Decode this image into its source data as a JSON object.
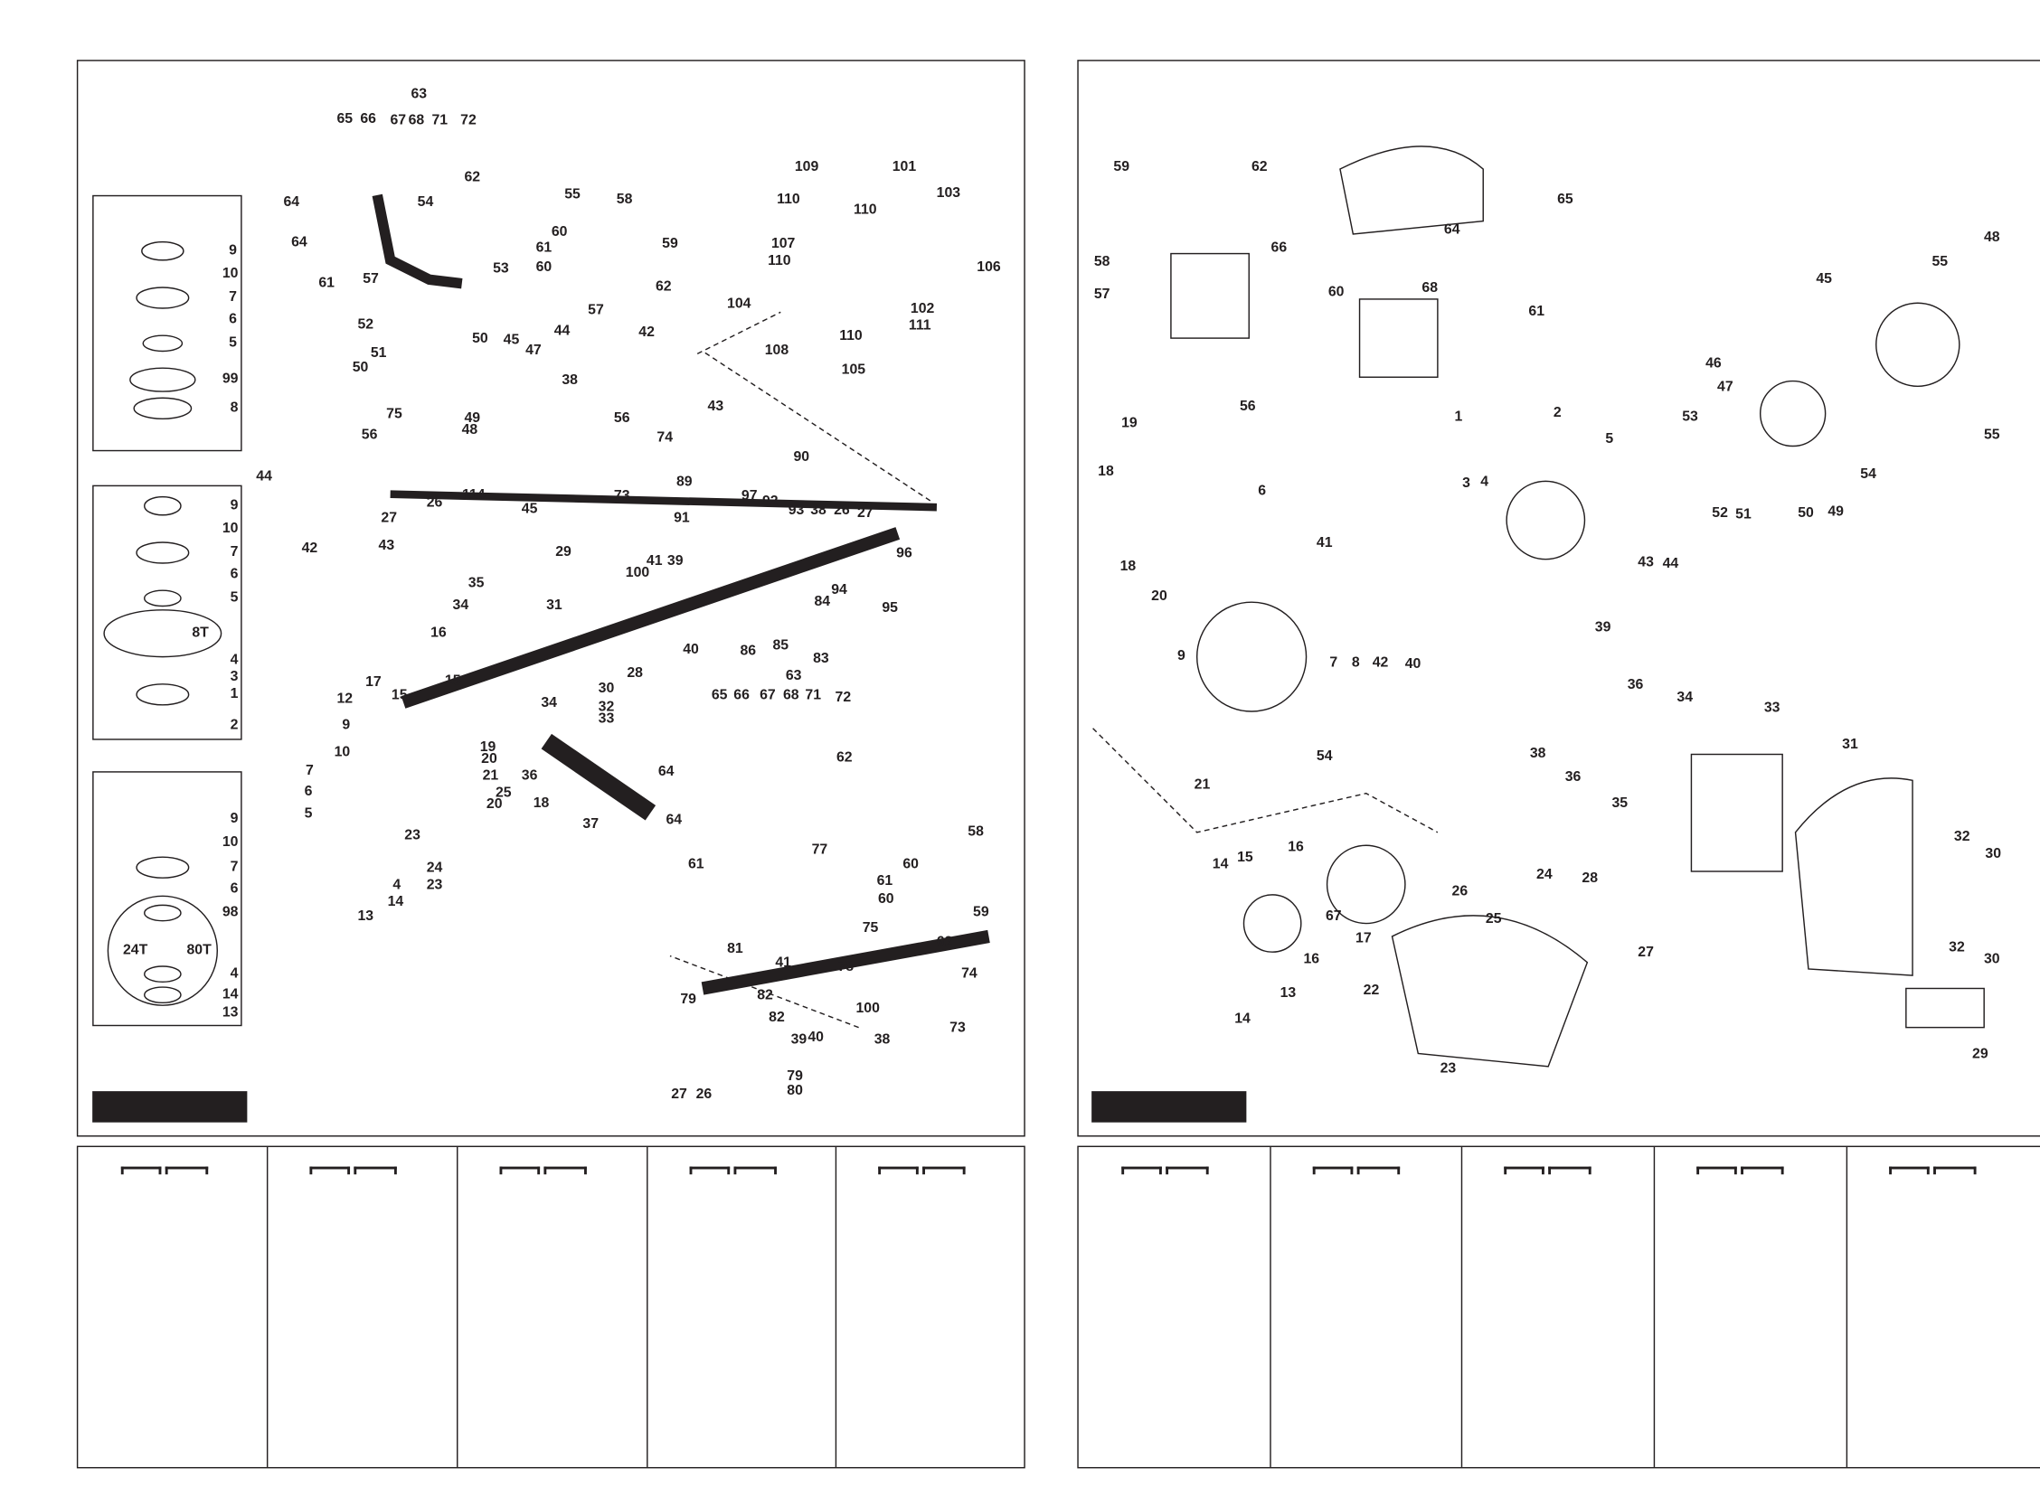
{
  "left_panel": {
    "labels": [
      "9",
      "10",
      "7",
      "6",
      "5",
      "99",
      "8",
      "9",
      "10",
      "7",
      "6",
      "5",
      "8T",
      "4",
      "3",
      "1",
      "2",
      "9",
      "10",
      "7",
      "6",
      "98",
      "24T",
      "80T",
      "4",
      "14",
      "13",
      "63",
      "65",
      "66",
      "67",
      "68",
      "71",
      "72",
      "62",
      "64",
      "64",
      "61",
      "54",
      "55",
      "58",
      "59",
      "60",
      "61",
      "60",
      "53",
      "57",
      "62",
      "57",
      "52",
      "51",
      "50",
      "45",
      "47",
      "50",
      "44",
      "42",
      "38",
      "49",
      "48",
      "56",
      "43",
      "75",
      "56",
      "74",
      "26",
      "27",
      "114",
      "45",
      "44",
      "42",
      "43",
      "73",
      "89",
      "90",
      "97",
      "92",
      "93",
      "38",
      "26",
      "27",
      "91",
      "41",
      "39",
      "100",
      "96",
      "94",
      "95",
      "29",
      "35",
      "31",
      "34",
      "86",
      "84",
      "85",
      "40",
      "83",
      "16",
      "17",
      "15",
      "15",
      "12",
      "9",
      "10",
      "28",
      "30",
      "32",
      "33",
      "34",
      "19",
      "20",
      "21",
      "36",
      "25",
      "20",
      "18",
      "37",
      "7",
      "6",
      "5",
      "23",
      "24",
      "23",
      "4",
      "14",
      "13",
      "63",
      "65",
      "66",
      "67",
      "68",
      "71",
      "72",
      "62",
      "64",
      "64",
      "61",
      "77",
      "58",
      "60",
      "61",
      "60",
      "59",
      "75",
      "62",
      "74",
      "81",
      "41",
      "78",
      "79",
      "82",
      "100",
      "38",
      "73",
      "82",
      "39",
      "40",
      "79",
      "80",
      "27",
      "26",
      "109",
      "101",
      "110",
      "110",
      "103",
      "107",
      "110",
      "106",
      "104",
      "102",
      "110",
      "111",
      "108",
      "105"
    ]
  },
  "right_panel": {
    "labels": [
      "59",
      "62",
      "65",
      "66",
      "64",
      "68",
      "58",
      "57",
      "60",
      "61",
      "48",
      "45",
      "55",
      "56",
      "1",
      "46",
      "47",
      "53",
      "19",
      "2",
      "5",
      "18",
      "3",
      "4",
      "6",
      "52",
      "51",
      "50",
      "49",
      "54",
      "55",
      "41",
      "43",
      "44",
      "18",
      "20",
      "39",
      "7",
      "8",
      "42",
      "40",
      "9",
      "36",
      "34",
      "33",
      "54",
      "38",
      "36",
      "35",
      "31",
      "21",
      "14",
      "15",
      "16",
      "67",
      "16",
      "17",
      "13",
      "14",
      "24",
      "26",
      "28",
      "25",
      "27",
      "22",
      "23",
      "32",
      "30",
      "32",
      "30",
      "29"
    ]
  },
  "colors": {
    "ink": "#231f20",
    "paper": "#ffffff"
  }
}
